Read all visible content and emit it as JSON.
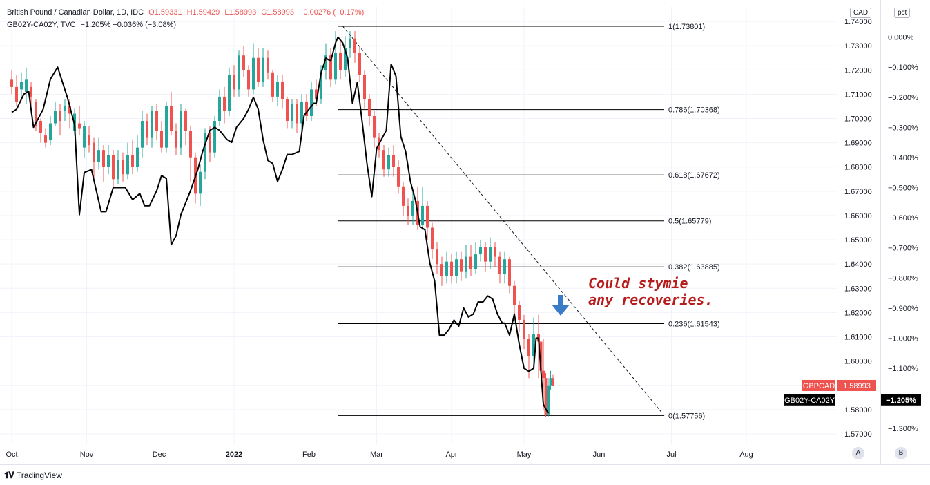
{
  "legend": {
    "symbol": "British Pound / Canadian Dollar, 1D, IDC",
    "open": "O1.59331",
    "high": "H1.59429",
    "low": "L1.58993",
    "close": "C1.58993",
    "change": "−0.00276 (−0.17%)",
    "spread_label": "GB02Y-CA02Y, TVC",
    "spread_values": "−1.205%  −0.036% (−3.08%)"
  },
  "scale_buttons": {
    "left": "CAD",
    "right": "pct"
  },
  "annotation": {
    "line1": "Could stymie",
    "line2": "any recoveries."
  },
  "price_tag": {
    "symbol": "GBPCAD",
    "value": "1.58993",
    "color": "#ef5350"
  },
  "spread_tag": {
    "symbol": "GB02Y-CA02Y",
    "value": "−1.205%",
    "color": "#000000"
  },
  "ab_buttons": [
    "A",
    "B"
  ],
  "branding": "TradingView",
  "colors": {
    "up": "#26a69a",
    "down": "#ef5350",
    "spread_line": "#000000"
  },
  "chart_data": {
    "type": "line",
    "x_tick_labels": [
      "Oct",
      "Nov",
      "Dec",
      "2022",
      "Feb",
      "Mar",
      "Apr",
      "May",
      "Jun",
      "Jul",
      "Aug"
    ],
    "y_left": {
      "ticks": [
        "1.74000",
        "1.73000",
        "1.72000",
        "1.71000",
        "1.70000",
        "1.69000",
        "1.68000",
        "1.67000",
        "1.66000",
        "1.65000",
        "1.64000",
        "1.63000",
        "1.62000",
        "1.61000",
        "1.60000",
        "1.59000",
        "1.58000",
        "1.57000"
      ],
      "range": [
        1.566,
        1.746
      ]
    },
    "y_right": {
      "ticks": [
        "0.000%",
        "−0.100%",
        "−0.200%",
        "−0.300%",
        "−0.400%",
        "−0.500%",
        "−0.600%",
        "−0.700%",
        "−0.800%",
        "−0.900%",
        "−1.000%",
        "−1.100%",
        "−1.200%",
        "−1.300%"
      ],
      "range": [
        -1.35,
        0.1
      ]
    },
    "fibonacci": [
      {
        "ratio": 1,
        "price": 1.73801,
        "label": "1(1.73801)"
      },
      {
        "ratio": 0.786,
        "price": 1.70368,
        "label": "0.786(1.70368)"
      },
      {
        "ratio": 0.618,
        "price": 1.67672,
        "label": "0.618(1.67672)"
      },
      {
        "ratio": 0.5,
        "price": 1.65779,
        "label": "0.5(1.65779)"
      },
      {
        "ratio": 0.382,
        "price": 1.63885,
        "label": "0.382(1.63885)"
      },
      {
        "ratio": 0.236,
        "price": 1.61543,
        "label": "0.236(1.61543)"
      },
      {
        "ratio": 0,
        "price": 1.57756,
        "label": "0(1.57756)"
      }
    ],
    "fib_start_day": 135,
    "fib_end_day": 270,
    "trendline": {
      "from": [
        137,
        1.73801
      ],
      "to": [
        270,
        1.57756
      ]
    },
    "spread_series": [
      [
        0,
        -0.25
      ],
      [
        2,
        -0.24
      ],
      [
        5,
        -0.19
      ],
      [
        7,
        -0.18
      ],
      [
        9,
        -0.3
      ],
      [
        11,
        -0.27
      ],
      [
        13,
        -0.24
      ],
      [
        16,
        -0.14
      ],
      [
        19,
        -0.1
      ],
      [
        21,
        -0.15
      ],
      [
        23,
        -0.2
      ],
      [
        26,
        -0.29
      ],
      [
        28,
        -0.59
      ],
      [
        30,
        -0.45
      ],
      [
        33,
        -0.44
      ],
      [
        35,
        -0.51
      ],
      [
        37,
        -0.58
      ],
      [
        39,
        -0.58
      ],
      [
        42,
        -0.5
      ],
      [
        45,
        -0.5
      ],
      [
        47,
        -0.5
      ],
      [
        50,
        -0.54
      ],
      [
        53,
        -0.52
      ],
      [
        55,
        -0.56
      ],
      [
        57,
        -0.56
      ],
      [
        60,
        -0.51
      ],
      [
        62,
        -0.46
      ],
      [
        64,
        -0.47
      ],
      [
        66,
        -0.69
      ],
      [
        68,
        -0.66
      ],
      [
        70,
        -0.59
      ],
      [
        72,
        -0.55
      ],
      [
        74,
        -0.51
      ],
      [
        77,
        -0.44
      ],
      [
        79,
        -0.38
      ],
      [
        82,
        -0.31
      ],
      [
        84,
        -0.3
      ],
      [
        86,
        -0.31
      ],
      [
        89,
        -0.34
      ],
      [
        91,
        -0.35
      ],
      [
        93,
        -0.3
      ],
      [
        96,
        -0.27
      ],
      [
        98,
        -0.24
      ],
      [
        100,
        -0.2
      ],
      [
        102,
        -0.24
      ],
      [
        104,
        -0.34
      ],
      [
        106,
        -0.41
      ],
      [
        108,
        -0.42
      ],
      [
        110,
        -0.48
      ],
      [
        112,
        -0.44
      ],
      [
        114,
        -0.39
      ],
      [
        116,
        -0.39
      ],
      [
        119,
        -0.38
      ],
      [
        121,
        -0.26
      ],
      [
        123,
        -0.24
      ],
      [
        125,
        -0.22
      ],
      [
        126,
        -0.22
      ],
      [
        128,
        -0.12
      ],
      [
        130,
        -0.07
      ],
      [
        132,
        -0.08
      ],
      [
        134,
        -0.02
      ],
      [
        135,
        0.0
      ],
      [
        137,
        -0.02
      ],
      [
        139,
        -0.07
      ],
      [
        141,
        -0.22
      ],
      [
        143,
        -0.15
      ],
      [
        145,
        -0.28
      ],
      [
        147,
        -0.42
      ],
      [
        149,
        -0.53
      ],
      [
        151,
        -0.37
      ],
      [
        153,
        -0.34
      ],
      [
        155,
        -0.31
      ],
      [
        157,
        -0.09
      ],
      [
        159,
        -0.13
      ],
      [
        161,
        -0.33
      ],
      [
        163,
        -0.38
      ],
      [
        165,
        -0.48
      ],
      [
        167,
        -0.54
      ],
      [
        169,
        -0.63
      ],
      [
        171,
        -0.64
      ],
      [
        173,
        -0.75
      ],
      [
        175,
        -0.81
      ],
      [
        177,
        -0.99
      ],
      [
        179,
        -0.99
      ],
      [
        181,
        -0.97
      ],
      [
        183,
        -0.94
      ],
      [
        185,
        -0.96
      ],
      [
        187,
        -0.9
      ],
      [
        189,
        -0.93
      ],
      [
        191,
        -0.92
      ],
      [
        193,
        -0.88
      ],
      [
        195,
        -0.88
      ],
      [
        197,
        -0.86
      ],
      [
        199,
        -0.87
      ],
      [
        201,
        -0.92
      ],
      [
        203,
        -0.95
      ],
      [
        204,
        -0.95
      ],
      [
        206,
        -0.99
      ],
      [
        208,
        -0.92
      ],
      [
        210,
        -1.02
      ],
      [
        212,
        -1.1
      ],
      [
        214,
        -1.11
      ],
      [
        216,
        -1.1
      ],
      [
        217,
        -1.0
      ],
      [
        218,
        -1.0
      ],
      [
        220,
        -1.22
      ],
      [
        222,
        -1.25
      ]
    ],
    "candles": [
      [
        0,
        1.716,
        1.713,
        1.72,
        1.71
      ],
      [
        2,
        1.713,
        1.707,
        1.718,
        1.705
      ],
      [
        4,
        1.712,
        1.715,
        1.719,
        1.708
      ],
      [
        6,
        1.711,
        1.716,
        1.721,
        1.706
      ],
      [
        8,
        1.713,
        1.709,
        1.715,
        1.702
      ],
      [
        10,
        1.707,
        1.697,
        1.708,
        1.695
      ],
      [
        12,
        1.699,
        1.694,
        1.7,
        1.69
      ],
      [
        14,
        1.693,
        1.69,
        1.696,
        1.688
      ],
      [
        16,
        1.691,
        1.698,
        1.701,
        1.689
      ],
      [
        18,
        1.698,
        1.703,
        1.707,
        1.697
      ],
      [
        20,
        1.703,
        1.699,
        1.706,
        1.693
      ],
      [
        22,
        1.703,
        1.705,
        1.708,
        1.699
      ],
      [
        24,
        1.705,
        1.702,
        1.708,
        1.696
      ],
      [
        26,
        1.695,
        1.702,
        1.704,
        1.693
      ],
      [
        28,
        1.698,
        1.696,
        1.705,
        1.693
      ],
      [
        30,
        1.688,
        1.697,
        1.699,
        1.684
      ],
      [
        32,
        1.693,
        1.689,
        1.697,
        1.686
      ],
      [
        34,
        1.69,
        1.682,
        1.692,
        1.675
      ],
      [
        36,
        1.682,
        1.687,
        1.692,
        1.679
      ],
      [
        38,
        1.687,
        1.68,
        1.689,
        1.674
      ],
      [
        40,
        1.68,
        1.685,
        1.689,
        1.677
      ],
      [
        42,
        1.685,
        1.675,
        1.687,
        1.671
      ],
      [
        44,
        1.675,
        1.683,
        1.687,
        1.673
      ],
      [
        46,
        1.683,
        1.677,
        1.686,
        1.674
      ],
      [
        48,
        1.677,
        1.685,
        1.69,
        1.675
      ],
      [
        50,
        1.685,
        1.68,
        1.691,
        1.677
      ],
      [
        52,
        1.68,
        1.688,
        1.693,
        1.678
      ],
      [
        54,
        1.688,
        1.699,
        1.703,
        1.684
      ],
      [
        56,
        1.699,
        1.692,
        1.702,
        1.689
      ],
      [
        58,
        1.692,
        1.703,
        1.705,
        1.688
      ],
      [
        60,
        1.703,
        1.695,
        1.706,
        1.691
      ],
      [
        62,
        1.695,
        1.688,
        1.699,
        1.686
      ],
      [
        64,
        1.688,
        1.705,
        1.707,
        1.686
      ],
      [
        66,
        1.705,
        1.695,
        1.711,
        1.693
      ],
      [
        68,
        1.695,
        1.688,
        1.698,
        1.685
      ],
      [
        70,
        1.688,
        1.703,
        1.706,
        1.685
      ],
      [
        72,
        1.703,
        1.695,
        1.704,
        1.689
      ],
      [
        74,
        1.695,
        1.684,
        1.697,
        1.674
      ],
      [
        76,
        1.684,
        1.669,
        1.686,
        1.665
      ],
      [
        78,
        1.669,
        1.678,
        1.681,
        1.664
      ],
      [
        80,
        1.678,
        1.694,
        1.696,
        1.675
      ],
      [
        82,
        1.694,
        1.686,
        1.697,
        1.682
      ],
      [
        84,
        1.686,
        1.699,
        1.701,
        1.684
      ],
      [
        86,
        1.699,
        1.709,
        1.712,
        1.697
      ],
      [
        88,
        1.709,
        1.703,
        1.713,
        1.698
      ],
      [
        90,
        1.703,
        1.718,
        1.721,
        1.701
      ],
      [
        92,
        1.718,
        1.712,
        1.722,
        1.709
      ],
      [
        94,
        1.712,
        1.726,
        1.728,
        1.709
      ],
      [
        96,
        1.726,
        1.72,
        1.73,
        1.717
      ],
      [
        98,
        1.72,
        1.712,
        1.722,
        1.709
      ],
      [
        100,
        1.712,
        1.725,
        1.731,
        1.71
      ],
      [
        102,
        1.725,
        1.715,
        1.729,
        1.713
      ],
      [
        104,
        1.715,
        1.725,
        1.729,
        1.713
      ],
      [
        106,
        1.725,
        1.719,
        1.728,
        1.716
      ],
      [
        108,
        1.719,
        1.709,
        1.72,
        1.707
      ],
      [
        110,
        1.709,
        1.715,
        1.718,
        1.705
      ],
      [
        112,
        1.715,
        1.708,
        1.718,
        1.704
      ],
      [
        114,
        1.708,
        1.699,
        1.709,
        1.696
      ],
      [
        116,
        1.699,
        1.706,
        1.708,
        1.696
      ],
      [
        118,
        1.706,
        1.698,
        1.708,
        1.694
      ],
      [
        120,
        1.698,
        1.707,
        1.71,
        1.695
      ],
      [
        122,
        1.707,
        1.701,
        1.71,
        1.699
      ],
      [
        124,
        1.701,
        1.712,
        1.715,
        1.699
      ],
      [
        126,
        1.712,
        1.708,
        1.716,
        1.705
      ],
      [
        128,
        1.708,
        1.72,
        1.722,
        1.706
      ],
      [
        130,
        1.72,
        1.726,
        1.731,
        1.716
      ],
      [
        132,
        1.726,
        1.716,
        1.729,
        1.713
      ],
      [
        134,
        1.716,
        1.727,
        1.736,
        1.714
      ],
      [
        136,
        1.727,
        1.72,
        1.733,
        1.716
      ],
      [
        138,
        1.72,
        1.729,
        1.734,
        1.717
      ],
      [
        140,
        1.729,
        1.733,
        1.736,
        1.725
      ],
      [
        142,
        1.733,
        1.727,
        1.736,
        1.723
      ],
      [
        144,
        1.727,
        1.718,
        1.73,
        1.715
      ],
      [
        146,
        1.718,
        1.708,
        1.72,
        1.704
      ],
      [
        148,
        1.708,
        1.701,
        1.71,
        1.697
      ],
      [
        150,
        1.701,
        1.692,
        1.703,
        1.688
      ],
      [
        152,
        1.692,
        1.687,
        1.694,
        1.684
      ],
      [
        154,
        1.687,
        1.679,
        1.689,
        1.676
      ],
      [
        156,
        1.679,
        1.685,
        1.688,
        1.676
      ],
      [
        158,
        1.685,
        1.68,
        1.689,
        1.676
      ],
      [
        160,
        1.68,
        1.672,
        1.683,
        1.669
      ],
      [
        162,
        1.672,
        1.664,
        1.674,
        1.66
      ],
      [
        164,
        1.664,
        1.66,
        1.667,
        1.656
      ],
      [
        166,
        1.66,
        1.666,
        1.67,
        1.656
      ],
      [
        168,
        1.666,
        1.656,
        1.672,
        1.654
      ],
      [
        170,
        1.656,
        1.664,
        1.672,
        1.654
      ],
      [
        172,
        1.664,
        1.655,
        1.666,
        1.65
      ],
      [
        174,
        1.655,
        1.646,
        1.657,
        1.642
      ],
      [
        176,
        1.646,
        1.64,
        1.649,
        1.636
      ],
      [
        178,
        1.64,
        1.635,
        1.643,
        1.631
      ],
      [
        180,
        1.635,
        1.641,
        1.645,
        1.632
      ],
      [
        182,
        1.641,
        1.635,
        1.644,
        1.632
      ],
      [
        184,
        1.635,
        1.642,
        1.645,
        1.632
      ],
      [
        186,
        1.642,
        1.637,
        1.645,
        1.633
      ],
      [
        188,
        1.637,
        1.643,
        1.648,
        1.634
      ],
      [
        190,
        1.643,
        1.638,
        1.648,
        1.635
      ],
      [
        192,
        1.638,
        1.644,
        1.649,
        1.636
      ],
      [
        194,
        1.644,
        1.647,
        1.65,
        1.641
      ],
      [
        196,
        1.647,
        1.641,
        1.649,
        1.637
      ],
      [
        198,
        1.641,
        1.647,
        1.651,
        1.638
      ],
      [
        200,
        1.647,
        1.643,
        1.649,
        1.639
      ],
      [
        202,
        1.643,
        1.636,
        1.645,
        1.632
      ],
      [
        204,
        1.636,
        1.642,
        1.645,
        1.632
      ],
      [
        206,
        1.642,
        1.631,
        1.643,
        1.628
      ],
      [
        208,
        1.631,
        1.623,
        1.633,
        1.618
      ],
      [
        210,
        1.623,
        1.617,
        1.625,
        1.612
      ],
      [
        212,
        1.617,
        1.609,
        1.619,
        1.605
      ],
      [
        214,
        1.609,
        1.602,
        1.611,
        1.593
      ],
      [
        216,
        1.602,
        1.611,
        1.618,
        1.597
      ],
      [
        218,
        1.611,
        1.608,
        1.619,
        1.593
      ],
      [
        219,
        1.608,
        1.596,
        1.61,
        1.595
      ],
      [
        220,
        1.596,
        1.593,
        1.609,
        1.58
      ],
      [
        221,
        1.593,
        1.578,
        1.595,
        1.577
      ],
      [
        222,
        1.578,
        1.59,
        1.593,
        1.577
      ],
      [
        223,
        1.59,
        1.593,
        1.596,
        1.588
      ],
      [
        224,
        1.593,
        1.58993,
        1.59429,
        1.58993
      ]
    ]
  }
}
